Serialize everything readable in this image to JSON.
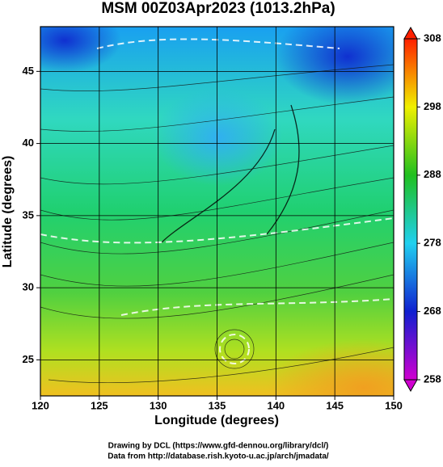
{
  "title": "MSM 00Z03Apr2023 (1013.2hPa)",
  "map": {
    "xlabel": "Longitude (degrees)",
    "ylabel": "Latitude  (degrees)",
    "xlim": [
      120,
      150
    ],
    "xticks": [
      120,
      125,
      130,
      135,
      140,
      145,
      150
    ],
    "ylim": [
      22.5,
      48.1
    ],
    "yticks": [
      25,
      30,
      35,
      40,
      45
    ],
    "grid": true
  },
  "colorbar": {
    "lim": [
      258,
      308
    ],
    "ticks": [
      258,
      268,
      278,
      288,
      298,
      308
    ]
  },
  "credits": [
    "Drawing by DCL (https://www.gfd-dennou.org/library/dcl/)",
    "Data from http://database.rish.kyoto-u.ac.jp/arch/jmadata/"
  ]
}
